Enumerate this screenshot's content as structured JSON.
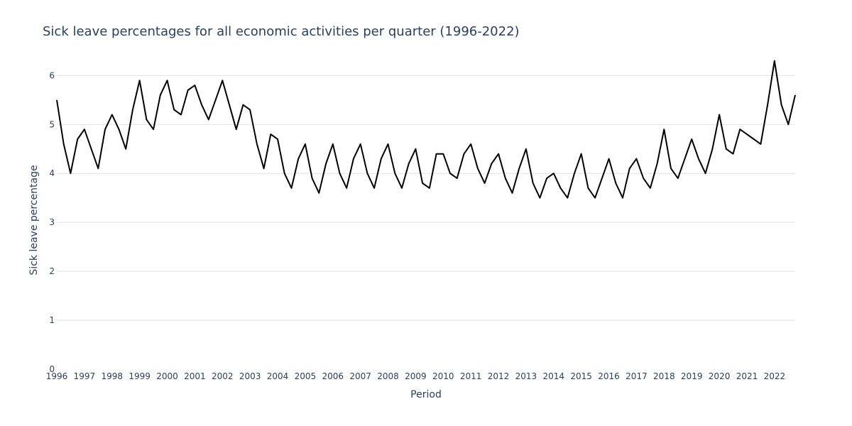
{
  "chart_data": {
    "type": "line",
    "title": "Sick leave percentages for all economic activities per quarter (1996-2022)",
    "xlabel": "Period",
    "ylabel": "Sick leave percentage",
    "xlim": [
      1996,
      2022.75
    ],
    "ylim": [
      0,
      6.6
    ],
    "x_ticks": [
      1996,
      1997,
      1998,
      1999,
      2000,
      2001,
      2002,
      2003,
      2004,
      2005,
      2006,
      2007,
      2008,
      2009,
      2010,
      2011,
      2012,
      2013,
      2014,
      2015,
      2016,
      2017,
      2018,
      2019,
      2020,
      2021,
      2022
    ],
    "y_ticks": [
      0,
      1,
      2,
      3,
      4,
      5,
      6
    ],
    "grid": true,
    "legend": false,
    "line_color": "#000000",
    "series": [
      {
        "x": [
          "1996 Q1",
          "1996 Q2",
          "1996 Q3",
          "1996 Q4",
          "1997 Q1",
          "1997 Q2",
          "1997 Q3",
          "1997 Q4",
          "1998 Q1",
          "1998 Q2",
          "1998 Q3",
          "1998 Q4",
          "1999 Q1",
          "1999 Q2",
          "1999 Q3",
          "1999 Q4",
          "2000 Q1",
          "2000 Q2",
          "2000 Q3",
          "2000 Q4",
          "2001 Q1",
          "2001 Q2",
          "2001 Q3",
          "2001 Q4",
          "2002 Q1",
          "2002 Q2",
          "2002 Q3",
          "2002 Q4",
          "2003 Q1",
          "2003 Q2",
          "2003 Q3",
          "2003 Q4",
          "2004 Q1",
          "2004 Q2",
          "2004 Q3",
          "2004 Q4",
          "2005 Q1",
          "2005 Q2",
          "2005 Q3",
          "2005 Q4",
          "2006 Q1",
          "2006 Q2",
          "2006 Q3",
          "2006 Q4",
          "2007 Q1",
          "2007 Q2",
          "2007 Q3",
          "2007 Q4",
          "2008 Q1",
          "2008 Q2",
          "2008 Q3",
          "2008 Q4",
          "2009 Q1",
          "2009 Q2",
          "2009 Q3",
          "2009 Q4",
          "2010 Q1",
          "2010 Q2",
          "2010 Q3",
          "2010 Q4",
          "2011 Q1",
          "2011 Q2",
          "2011 Q3",
          "2011 Q4",
          "2012 Q1",
          "2012 Q2",
          "2012 Q3",
          "2012 Q4",
          "2013 Q1",
          "2013 Q2",
          "2013 Q3",
          "2013 Q4",
          "2014 Q1",
          "2014 Q2",
          "2014 Q3",
          "2014 Q4",
          "2015 Q1",
          "2015 Q2",
          "2015 Q3",
          "2015 Q4",
          "2016 Q1",
          "2016 Q2",
          "2016 Q3",
          "2016 Q4",
          "2017 Q1",
          "2017 Q2",
          "2017 Q3",
          "2017 Q4",
          "2018 Q1",
          "2018 Q2",
          "2018 Q3",
          "2018 Q4",
          "2019 Q1",
          "2019 Q2",
          "2019 Q3",
          "2019 Q4",
          "2020 Q1",
          "2020 Q2",
          "2020 Q3",
          "2020 Q4",
          "2021 Q1",
          "2021 Q2",
          "2021 Q3",
          "2021 Q4",
          "2022 Q1",
          "2022 Q2",
          "2022 Q3",
          "2022 Q4"
        ],
        "values": [
          5.5,
          4.6,
          4.0,
          4.7,
          4.9,
          4.5,
          4.1,
          4.9,
          5.2,
          4.9,
          4.5,
          5.3,
          5.9,
          5.1,
          4.9,
          5.6,
          5.9,
          5.3,
          5.2,
          5.7,
          5.8,
          5.4,
          5.1,
          5.5,
          5.9,
          5.4,
          4.9,
          5.4,
          5.3,
          4.6,
          4.1,
          4.8,
          4.7,
          4.0,
          3.7,
          4.3,
          4.6,
          3.9,
          3.6,
          4.2,
          4.6,
          4.0,
          3.7,
          4.3,
          4.6,
          4.0,
          3.7,
          4.3,
          4.6,
          4.0,
          3.7,
          4.2,
          4.5,
          3.8,
          3.7,
          4.4,
          4.4,
          4.0,
          3.9,
          4.4,
          4.6,
          4.1,
          3.8,
          4.2,
          4.4,
          3.9,
          3.6,
          4.1,
          4.5,
          3.8,
          3.5,
          3.9,
          4.0,
          3.7,
          3.5,
          4.0,
          4.4,
          3.7,
          3.5,
          3.9,
          4.3,
          3.8,
          3.5,
          4.1,
          4.3,
          3.9,
          3.7,
          4.2,
          4.9,
          4.1,
          3.9,
          4.3,
          4.7,
          4.3,
          4.0,
          4.5,
          5.2,
          4.5,
          4.4,
          4.9,
          4.8,
          4.7,
          4.6,
          5.4,
          6.3,
          5.4,
          5.0,
          5.6
        ]
      }
    ]
  }
}
